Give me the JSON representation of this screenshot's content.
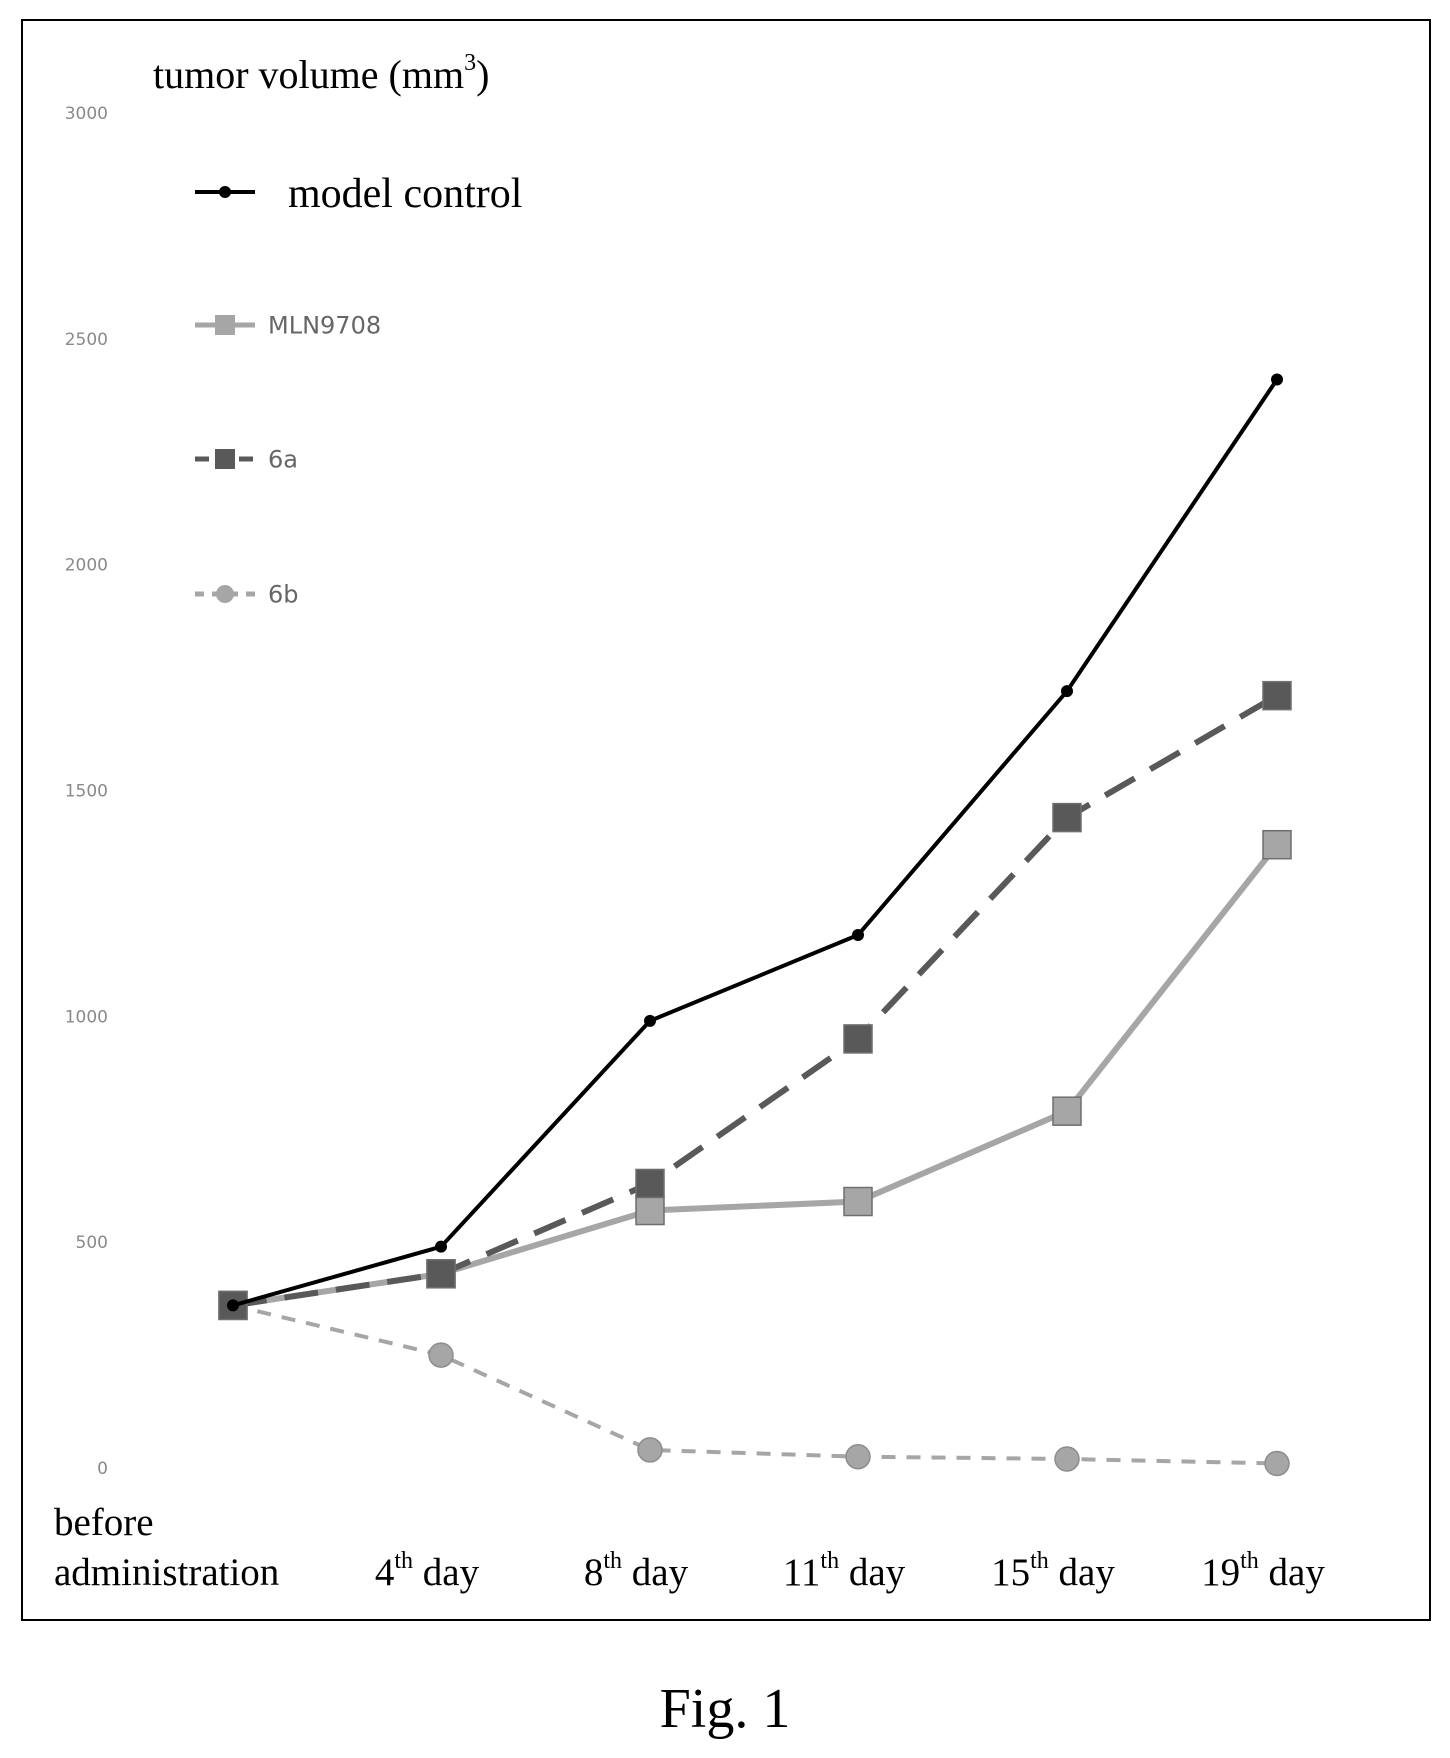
{
  "chart_data": {
    "type": "line",
    "ylabel": "tumor volume (mm",
    "ylabel_sup": "3",
    "ylabel_close": ")",
    "ylim": [
      0,
      3000
    ],
    "yticks": [
      "0",
      "500",
      "1000",
      "1500",
      "2000",
      "2500",
      "3000"
    ],
    "categories": [
      {
        "lines": [
          "before",
          "administration"
        ],
        "ord": "",
        "day": ""
      },
      {
        "lines": [],
        "ord": "th",
        "num": "4",
        "day": " day"
      },
      {
        "lines": [],
        "ord": "th",
        "num": "8",
        "day": " day"
      },
      {
        "lines": [],
        "ord": "th",
        "num": "11",
        "day": " day"
      },
      {
        "lines": [],
        "ord": "th",
        "num": "15",
        "day": " day"
      },
      {
        "lines": [],
        "ord": "th",
        "num": "19",
        "day": " day"
      }
    ],
    "legend_placement": "top-left",
    "grid": false,
    "series": [
      {
        "name": "model control",
        "values": [
          360,
          490,
          990,
          1180,
          1720,
          2410
        ],
        "color": "#000000",
        "marker": "circle-small",
        "dash": "solid"
      },
      {
        "name": "MLN9708",
        "values": [
          360,
          430,
          570,
          590,
          790,
          1380
        ],
        "color": "#a6a6a6",
        "marker": "square",
        "dash": "solid"
      },
      {
        "name": "6a",
        "values": [
          360,
          430,
          630,
          950,
          1440,
          1710
        ],
        "color": "#595959",
        "marker": "square",
        "dash": "long-dash"
      },
      {
        "name": "6b",
        "values": [
          360,
          250,
          40,
          25,
          20,
          10
        ],
        "color": "#a6a6a6",
        "marker": "circle",
        "dash": "short-dash"
      }
    ]
  },
  "caption": "Fig. 1"
}
